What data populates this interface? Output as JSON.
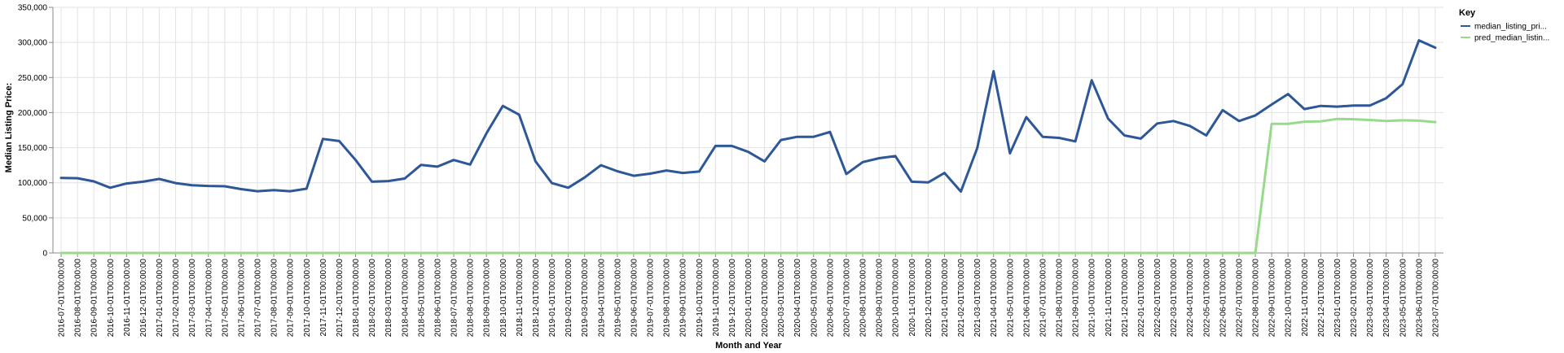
{
  "chart_data": {
    "type": "line",
    "xlabel": "Month and Year",
    "ylabel": "Median Listing Price:",
    "ylim": [
      0,
      350000
    ],
    "y_ticks": [
      0,
      50000,
      100000,
      150000,
      200000,
      250000,
      300000,
      350000
    ],
    "y_tick_labels": [
      "0",
      "50,000",
      "100,000",
      "150,000",
      "200,000",
      "250,000",
      "300,000",
      "350,000"
    ],
    "grid": true,
    "legend_title": "Key",
    "legend_position": "right",
    "x": [
      "2016-07-01T00:00:00",
      "2016-08-01T00:00:00",
      "2016-09-01T00:00:00",
      "2016-10-01T00:00:00",
      "2016-11-01T00:00:00",
      "2016-12-01T00:00:00",
      "2017-01-01T00:00:00",
      "2017-02-01T00:00:00",
      "2017-03-01T00:00:00",
      "2017-04-01T00:00:00",
      "2017-05-01T00:00:00",
      "2017-06-01T00:00:00",
      "2017-07-01T00:00:00",
      "2017-08-01T00:00:00",
      "2017-09-01T00:00:00",
      "2017-10-01T00:00:00",
      "2017-11-01T00:00:00",
      "2017-12-01T00:00:00",
      "2018-01-01T00:00:00",
      "2018-02-01T00:00:00",
      "2018-03-01T00:00:00",
      "2018-04-01T00:00:00",
      "2018-05-01T00:00:00",
      "2018-06-01T00:00:00",
      "2018-07-01T00:00:00",
      "2018-08-01T00:00:00",
      "2018-09-01T00:00:00",
      "2018-10-01T00:00:00",
      "2018-11-01T00:00:00",
      "2018-12-01T00:00:00",
      "2019-01-01T00:00:00",
      "2019-02-01T00:00:00",
      "2019-03-01T00:00:00",
      "2019-04-01T00:00:00",
      "2019-05-01T00:00:00",
      "2019-06-01T00:00:00",
      "2019-07-01T00:00:00",
      "2019-08-01T00:00:00",
      "2019-09-01T00:00:00",
      "2019-10-01T00:00:00",
      "2019-11-01T00:00:00",
      "2019-12-01T00:00:00",
      "2020-01-01T00:00:00",
      "2020-02-01T00:00:00",
      "2020-03-01T00:00:00",
      "2020-04-01T00:00:00",
      "2020-05-01T00:00:00",
      "2020-06-01T00:00:00",
      "2020-07-01T00:00:00",
      "2020-08-01T00:00:00",
      "2020-09-01T00:00:00",
      "2020-10-01T00:00:00",
      "2020-11-01T00:00:00",
      "2020-12-01T00:00:00",
      "2021-01-01T00:00:00",
      "2021-02-01T00:00:00",
      "2021-03-01T00:00:00",
      "2021-04-01T00:00:00",
      "2021-05-01T00:00:00",
      "2021-06-01T00:00:00",
      "2021-07-01T00:00:00",
      "2021-08-01T00:00:00",
      "2021-09-01T00:00:00",
      "2021-10-01T00:00:00",
      "2021-11-01T00:00:00",
      "2021-12-01T00:00:00",
      "2022-01-01T00:00:00",
      "2022-02-01T00:00:00",
      "2022-03-01T00:00:00",
      "2022-04-01T00:00:00",
      "2022-05-01T00:00:00",
      "2022-06-01T00:00:00",
      "2022-07-01T00:00:00",
      "2022-08-01T00:00:00",
      "2022-09-01T00:00:00",
      "2022-10-01T00:00:00",
      "2022-11-01T00:00:00",
      "2022-12-01T00:00:00",
      "2023-01-01T00:00:00",
      "2023-02-01T00:00:00",
      "2023-03-01T00:00:00",
      "2023-04-01T00:00:00",
      "2023-05-01T00:00:00",
      "2023-06-01T00:00:00",
      "2023-07-01T00:00:00"
    ],
    "series": [
      {
        "name": "median_listing_pri...",
        "color": "#2d5797",
        "values": [
          107000,
          106500,
          102000,
          93000,
          99000,
          101500,
          105500,
          99500,
          96500,
          95500,
          95000,
          91000,
          88000,
          89500,
          88000,
          91500,
          162500,
          159500,
          132500,
          101500,
          102500,
          106000,
          125500,
          123000,
          132500,
          126000,
          170500,
          209500,
          197000,
          130500,
          99500,
          93000,
          107500,
          125000,
          116500,
          110000,
          113000,
          117500,
          114000,
          116000,
          152500,
          152500,
          144000,
          130500,
          161000,
          165500,
          165500,
          172500,
          112500,
          129500,
          135000,
          138000,
          101500,
          100500,
          114000,
          87500,
          149500,
          259000,
          142000,
          193500,
          165500,
          164000,
          159000,
          246000,
          191500,
          167500,
          163000,
          184500,
          188000,
          181000,
          167500,
          203500,
          188000,
          196000,
          211500,
          226500,
          205000,
          209500,
          208500,
          210000,
          210000,
          220500,
          240500,
          303000,
          292500
        ]
      },
      {
        "name": "pred_median_listin...",
        "color": "#98da8b",
        "values": [
          0,
          0,
          0,
          0,
          0,
          0,
          0,
          0,
          0,
          0,
          0,
          0,
          0,
          0,
          0,
          0,
          0,
          0,
          0,
          0,
          0,
          0,
          0,
          0,
          0,
          0,
          0,
          0,
          0,
          0,
          0,
          0,
          0,
          0,
          0,
          0,
          0,
          0,
          0,
          0,
          0,
          0,
          0,
          0,
          0,
          0,
          0,
          0,
          0,
          0,
          0,
          0,
          0,
          0,
          0,
          0,
          0,
          0,
          0,
          0,
          0,
          0,
          0,
          0,
          0,
          0,
          0,
          0,
          0,
          0,
          0,
          0,
          0,
          0,
          184000,
          184000,
          187000,
          187500,
          191000,
          190500,
          189500,
          188000,
          189000,
          188500,
          186500
        ]
      }
    ]
  }
}
